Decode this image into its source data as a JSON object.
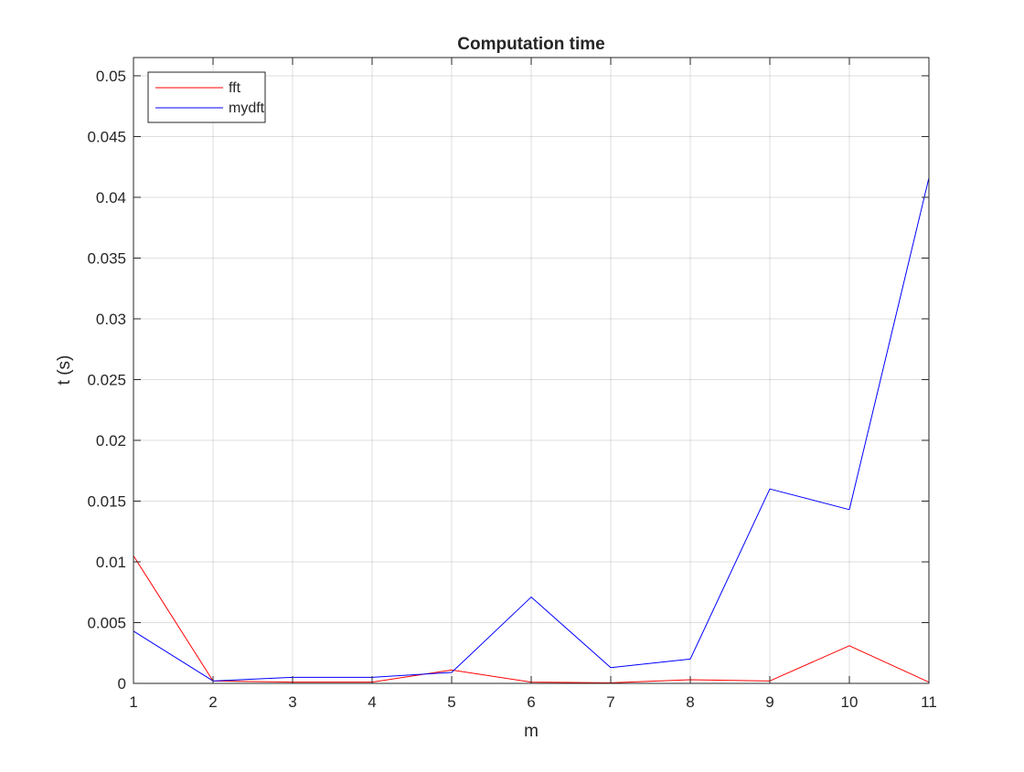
{
  "chart_data": {
    "type": "line",
    "title": "Computation time",
    "xlabel": "m",
    "ylabel": "t (s)",
    "xlim": [
      1,
      11
    ],
    "ylim": [
      0,
      0.0515
    ],
    "xticks": [
      "1",
      "2",
      "3",
      "4",
      "5",
      "6",
      "7",
      "8",
      "9",
      "10",
      "11"
    ],
    "yticks": [
      "0",
      "0.005",
      "0.01",
      "0.015",
      "0.02",
      "0.025",
      "0.03",
      "0.035",
      "0.04",
      "0.045",
      "0.05"
    ],
    "grid": true,
    "legend_position": "top-left",
    "x": [
      1,
      2,
      3,
      4,
      5,
      6,
      7,
      8,
      9,
      10,
      11
    ],
    "series": [
      {
        "name": "fft",
        "color": "#ff0000",
        "values": [
          0.0105,
          0.0002,
          0.0001,
          0.0001,
          0.0011,
          0.0001,
          5e-05,
          0.0003,
          0.0002,
          0.0031,
          0.0001
        ]
      },
      {
        "name": "mydft",
        "color": "#0000ff",
        "values": [
          0.0043,
          0.0002,
          0.0005,
          0.0005,
          0.0009,
          0.0071,
          0.0013,
          0.002,
          0.016,
          0.0143,
          0.0416
        ]
      }
    ]
  }
}
